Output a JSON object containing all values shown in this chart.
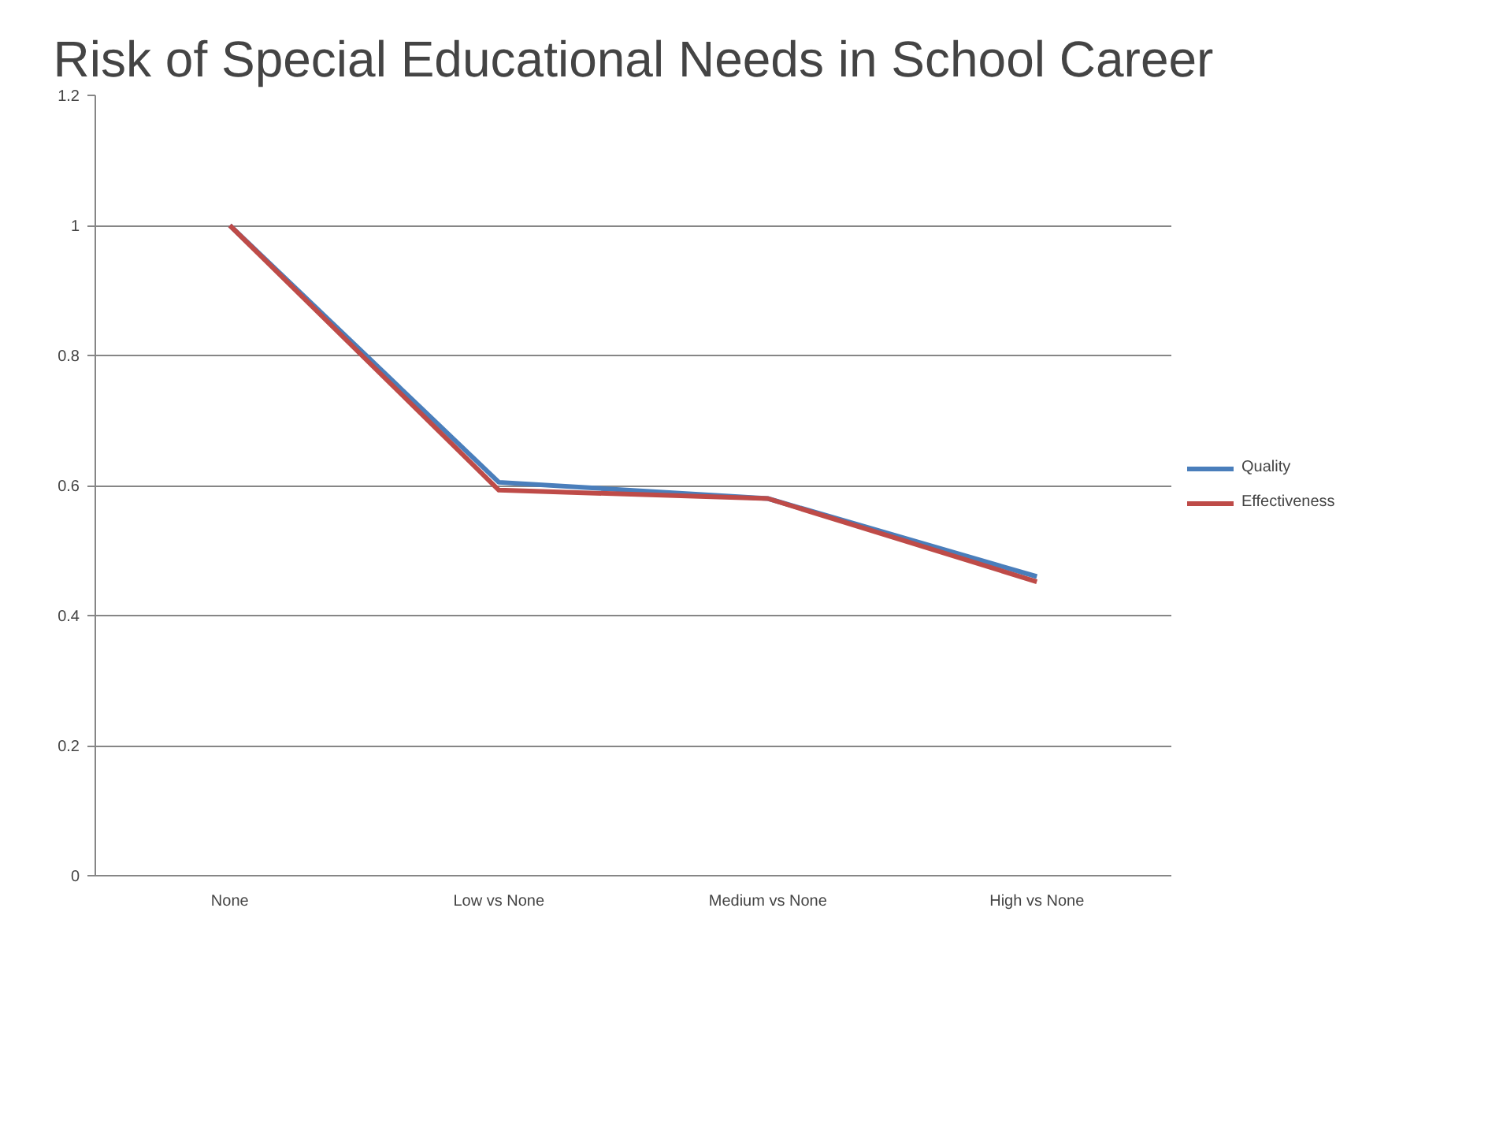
{
  "chart_data": {
    "type": "line",
    "title": "Risk of Special Educational Needs in School Career",
    "categories": [
      "None",
      "Low vs None",
      "Medium vs None",
      "High vs None"
    ],
    "series": [
      {
        "name": "Quality",
        "color": "#4a7ebb",
        "values": [
          1,
          0.605,
          0.58,
          0.46
        ]
      },
      {
        "name": "Effectiveness",
        "color": "#be4b48",
        "values": [
          1,
          0.593,
          0.58,
          0.452
        ]
      }
    ],
    "ylim": [
      0,
      1.2
    ],
    "yticks": [
      0,
      0.2,
      0.4,
      0.6,
      0.8,
      1,
      1.2
    ],
    "grid": "y",
    "legend": "right",
    "marker": "none",
    "line_style": "solid"
  }
}
